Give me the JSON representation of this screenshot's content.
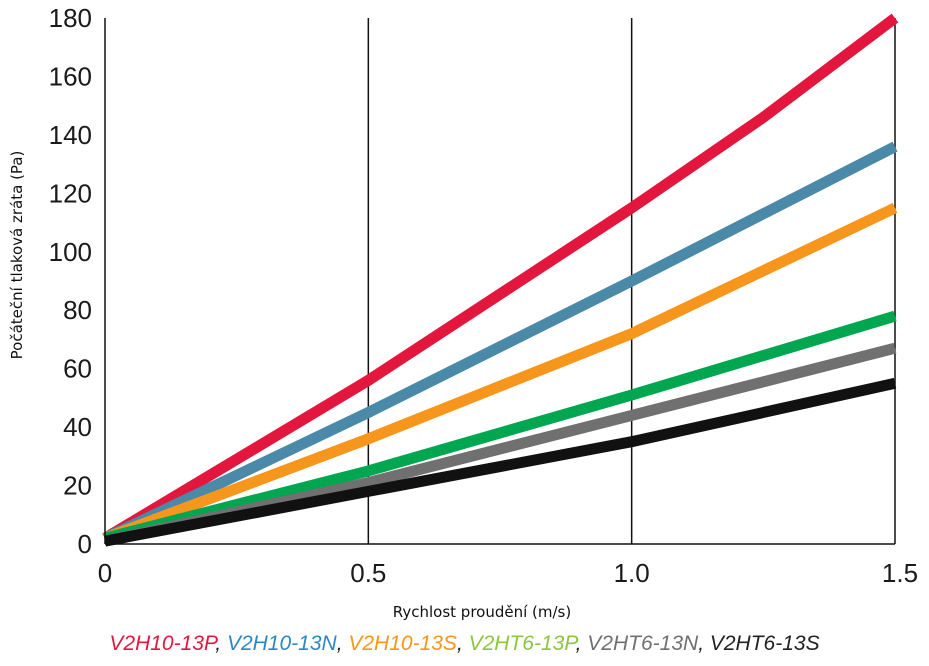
{
  "chart_data": {
    "type": "line",
    "xlabel": "Rychlost proudění (m/s)",
    "ylabel": "Počáteční tlaková zráta (Pa)",
    "xlim": [
      0,
      1.5
    ],
    "ylim": [
      0,
      180
    ],
    "x_ticks": [
      "0",
      "0.5",
      "1.0",
      "1.5"
    ],
    "x_tick_values": [
      0,
      0.5,
      1.0,
      1.5
    ],
    "y_ticks": [
      "0",
      "20",
      "40",
      "60",
      "80",
      "100",
      "120",
      "140",
      "160",
      "180"
    ],
    "y_tick_values": [
      0,
      20,
      40,
      60,
      80,
      100,
      120,
      140,
      160,
      180
    ],
    "grid": "vertical",
    "legend_position": "bottom",
    "series": [
      {
        "name": "V2H10-13P",
        "color": "#e3173e",
        "x": [
          0,
          0.5,
          1.0,
          1.25,
          1.5
        ],
        "y": [
          2,
          56,
          115,
          146,
          180
        ]
      },
      {
        "name": "V2H10-13N",
        "color": "#4a8aa8",
        "x": [
          0,
          0.5,
          1.0,
          1.5
        ],
        "y": [
          2,
          45,
          90,
          136
        ]
      },
      {
        "name": "V2H10-13S",
        "color": "#f7961d",
        "x": [
          0,
          0.5,
          1.0,
          1.5
        ],
        "y": [
          2,
          36,
          72,
          115
        ]
      },
      {
        "name": "V2HT6-13P",
        "color": "#00a650",
        "x": [
          0,
          0.5,
          1.0,
          1.5
        ],
        "y": [
          2,
          25,
          51,
          78
        ]
      },
      {
        "name": "V2HT6-13N",
        "color": "#707070",
        "x": [
          0,
          0.5,
          1.0,
          1.5
        ],
        "y": [
          1,
          21,
          44,
          67
        ]
      },
      {
        "name": "V2HT6-13S",
        "color": "#111111",
        "x": [
          0,
          0.5,
          1.0,
          1.5
        ],
        "y": [
          1,
          18,
          35,
          55
        ]
      }
    ],
    "legend_text_colors": [
      "#e3173e",
      "#2f86c4",
      "#f7961d",
      "#8cc63f",
      "#707070",
      "#222222"
    ]
  }
}
